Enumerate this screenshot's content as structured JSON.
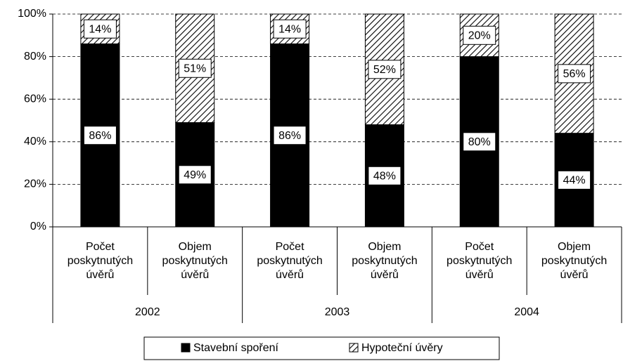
{
  "chart_data": {
    "type": "stacked_bar",
    "categories": [
      "Počet poskytnutých úvěrů",
      "Objem poskytnutých úvěrů",
      "Počet poskytnutých úvěrů",
      "Objem poskytnutých úvěrů",
      "Počet poskytnutých úvěrů",
      "Objem poskytnutých úvěrů"
    ],
    "groups": [
      "2002",
      "2003",
      "2004"
    ],
    "series": [
      {
        "name": "Stavební spoření",
        "color": "#000000",
        "fill": "solid",
        "values": [
          86,
          49,
          86,
          48,
          80,
          44
        ],
        "value_labels": [
          "86%",
          "49%",
          "86%",
          "48%",
          "80%",
          "44%"
        ]
      },
      {
        "name": "Hypoteční úvěry",
        "color": "#000000",
        "fill": "hatch",
        "values": [
          14,
          51,
          14,
          52,
          20,
          56
        ],
        "value_labels": [
          "14%",
          "51%",
          "14%",
          "52%",
          "20%",
          "56%"
        ]
      }
    ],
    "ylim": [
      0,
      100
    ],
    "yticks": [
      {
        "value": 0,
        "label": "0%"
      },
      {
        "value": 20,
        "label": "20%"
      },
      {
        "value": 40,
        "label": "40%"
      },
      {
        "value": 60,
        "label": "60%"
      },
      {
        "value": 80,
        "label": "80%"
      },
      {
        "value": 100,
        "label": "100%"
      }
    ],
    "grid": true,
    "legend": "bottom"
  }
}
